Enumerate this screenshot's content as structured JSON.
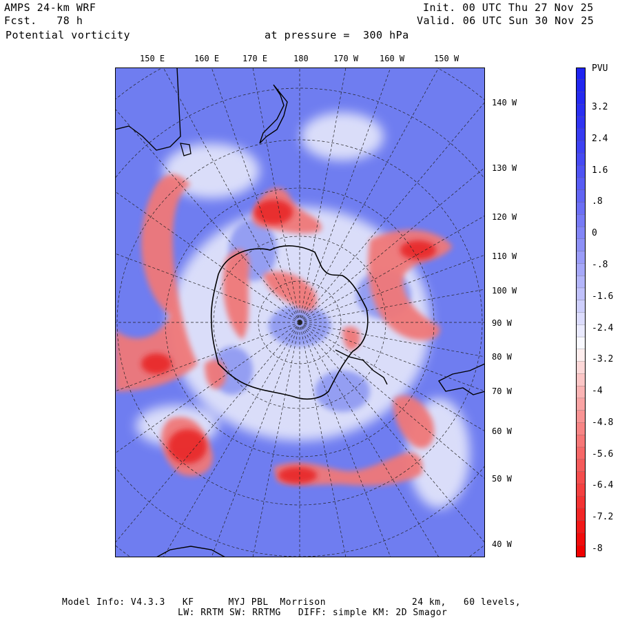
{
  "header": {
    "model": "AMPS 24-km WRF",
    "fcst_label": "Fcst.",
    "fcst_value": "78 h",
    "field": "Potential vorticity",
    "level_text": "at pressure =",
    "level_value": "300 hPa",
    "init_label": "Init.",
    "init_value": "00 UTC Thu 27 Nov 25",
    "valid_label": "Valid.",
    "valid_value": "06 UTC Sun 30 Nov 25"
  },
  "top_axis_labels": [
    "150 E",
    "160 E",
    "170 E",
    "180",
    "170 W",
    "160 W",
    "150 W"
  ],
  "right_axis_labels": [
    "140 W",
    "130 W",
    "120 W",
    "110 W",
    "100 W",
    "90 W",
    "80 W",
    "70 W",
    "60 W",
    "50 W",
    "40 W"
  ],
  "colorbar": {
    "unit": "PVU",
    "labels": [
      "3.2",
      "2.4",
      "1.6",
      ".8",
      "0",
      "-.8",
      "-1.6",
      "-2.4",
      "-3.2",
      "-4",
      "-4.8",
      "-5.6",
      "-6.4",
      "-7.2",
      "-8"
    ],
    "colors": {
      "max": "#1f24f0",
      "mid": "#ffffff",
      "min": "#f00000",
      "land": "#000000"
    }
  },
  "footer": {
    "line1": "Model Info: V4.3.3   KF      MYJ PBL  Morrison               24 km,   60 levels,",
    "line2": "LW: RRTM SW: RRTMG   DIFF: simple KM: 2D Smagor"
  }
}
